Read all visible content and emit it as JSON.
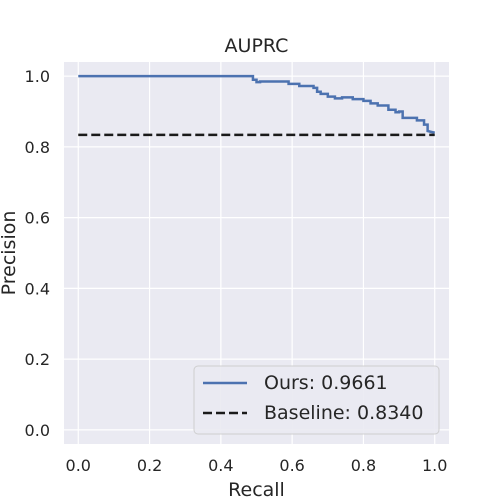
{
  "chart_data": {
    "type": "line",
    "title": "AUPRC",
    "xlabel": "Recall",
    "ylabel": "Precision",
    "xlim": [
      -0.04,
      1.04
    ],
    "ylim": [
      -0.04,
      1.04
    ],
    "xticks": [
      "0.0",
      "0.2",
      "0.4",
      "0.6",
      "0.8",
      "1.0"
    ],
    "yticks": [
      "0.0",
      "0.2",
      "0.4",
      "0.6",
      "0.8",
      "1.0"
    ],
    "xtick_values": [
      0.0,
      0.2,
      0.4,
      0.6,
      0.8,
      1.0
    ],
    "ytick_values": [
      0.0,
      0.2,
      0.4,
      0.6,
      0.8,
      1.0
    ],
    "grid": true,
    "legend_position": "lower right",
    "series": [
      {
        "name": "Ours: 0.9661",
        "color": "#4c72b0",
        "style": "solid",
        "x": [
          0.0,
          0.49,
          0.49,
          0.5,
          0.5,
          0.51,
          0.51,
          0.59,
          0.59,
          0.62,
          0.62,
          0.66,
          0.66,
          0.67,
          0.67,
          0.68,
          0.68,
          0.7,
          0.7,
          0.72,
          0.72,
          0.74,
          0.74,
          0.77,
          0.77,
          0.8,
          0.8,
          0.82,
          0.82,
          0.84,
          0.84,
          0.87,
          0.87,
          0.89,
          0.89,
          0.9,
          0.9,
          0.91,
          0.91,
          0.95,
          0.95,
          0.97,
          0.97,
          0.98,
          0.98,
          1.0
        ],
        "y": [
          1.0,
          1.0,
          0.99,
          0.99,
          0.983,
          0.983,
          0.985,
          0.985,
          0.978,
          0.978,
          0.972,
          0.972,
          0.967,
          0.967,
          0.956,
          0.956,
          0.95,
          0.95,
          0.942,
          0.942,
          0.937,
          0.937,
          0.94,
          0.94,
          0.935,
          0.935,
          0.93,
          0.93,
          0.923,
          0.923,
          0.917,
          0.917,
          0.905,
          0.905,
          0.898,
          0.898,
          0.9,
          0.9,
          0.882,
          0.882,
          0.875,
          0.875,
          0.863,
          0.863,
          0.845,
          0.84
        ]
      },
      {
        "name": "Baseline: 0.8340",
        "color": "#1a1a1a",
        "style": "dashed",
        "x": [
          0.0,
          1.0
        ],
        "y": [
          0.834,
          0.834
        ]
      }
    ]
  }
}
